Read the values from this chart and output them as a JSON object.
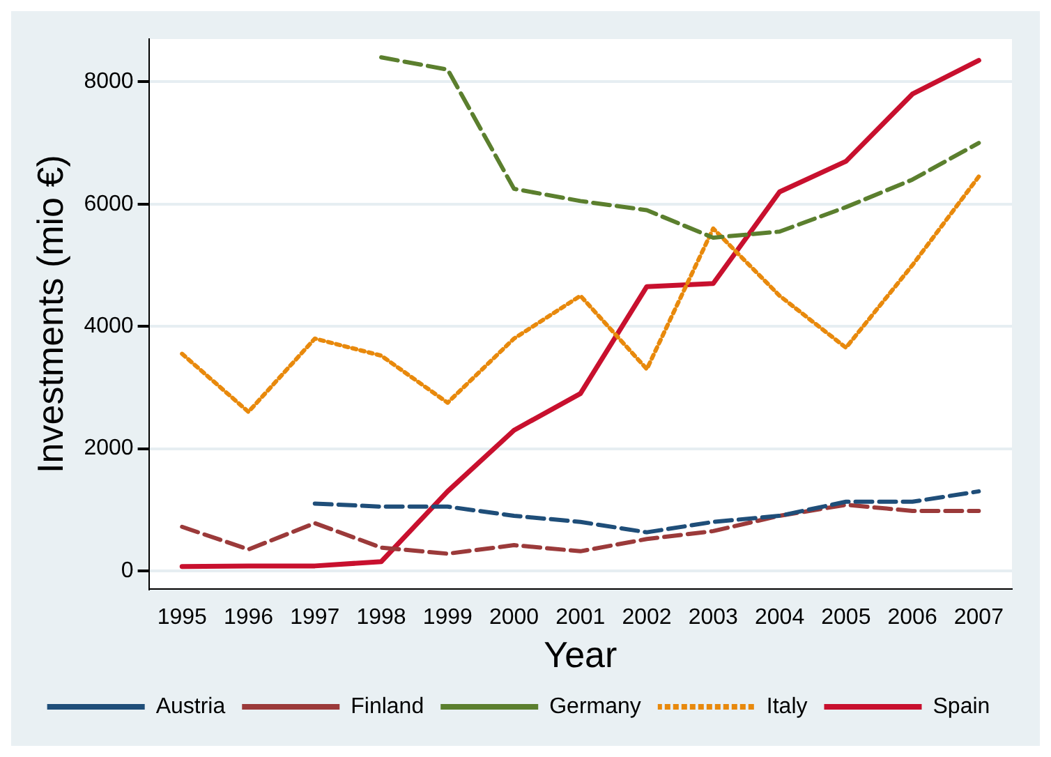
{
  "chart_data": {
    "type": "line",
    "xlabel": "Year",
    "ylabel": "Investments (mio €)",
    "categories": [
      "1995",
      "1996",
      "1997",
      "1998",
      "1999",
      "2000",
      "2001",
      "2002",
      "2003",
      "2004",
      "2005",
      "2006",
      "2007"
    ],
    "series": [
      {
        "name": "Austria",
        "color": "#1f4e79",
        "line_style": "dashed",
        "values": [
          null,
          null,
          1100,
          1050,
          1050,
          900,
          800,
          630,
          800,
          900,
          1130,
          1130,
          1300
        ]
      },
      {
        "name": "Finland",
        "color": "#9b3a3a",
        "line_style": "dashed",
        "values": [
          720,
          350,
          780,
          380,
          280,
          420,
          320,
          520,
          650,
          900,
          1080,
          980,
          980
        ]
      },
      {
        "name": "Germany",
        "color": "#5b7f2e",
        "line_style": "dashed",
        "values": [
          null,
          null,
          null,
          8400,
          8200,
          6250,
          6050,
          5900,
          5450,
          5550,
          5950,
          6400,
          7000
        ]
      },
      {
        "name": "Italy",
        "color": "#e8890c",
        "line_style": "dotted",
        "values": [
          3550,
          2600,
          3800,
          3520,
          2750,
          3800,
          4500,
          3300,
          5600,
          4500,
          3650,
          5000,
          6450
        ]
      },
      {
        "name": "Spain",
        "color": "#c8102e",
        "line_style": "solid",
        "values": [
          70,
          80,
          80,
          150,
          1300,
          2300,
          2900,
          4650,
          4700,
          6200,
          6700,
          7800,
          8350
        ]
      }
    ],
    "ylim": [
      -300,
      8700
    ],
    "yticks": [
      0,
      2000,
      4000,
      6000,
      8000
    ],
    "grid": "y",
    "legend": "bottom",
    "marker": "none"
  }
}
